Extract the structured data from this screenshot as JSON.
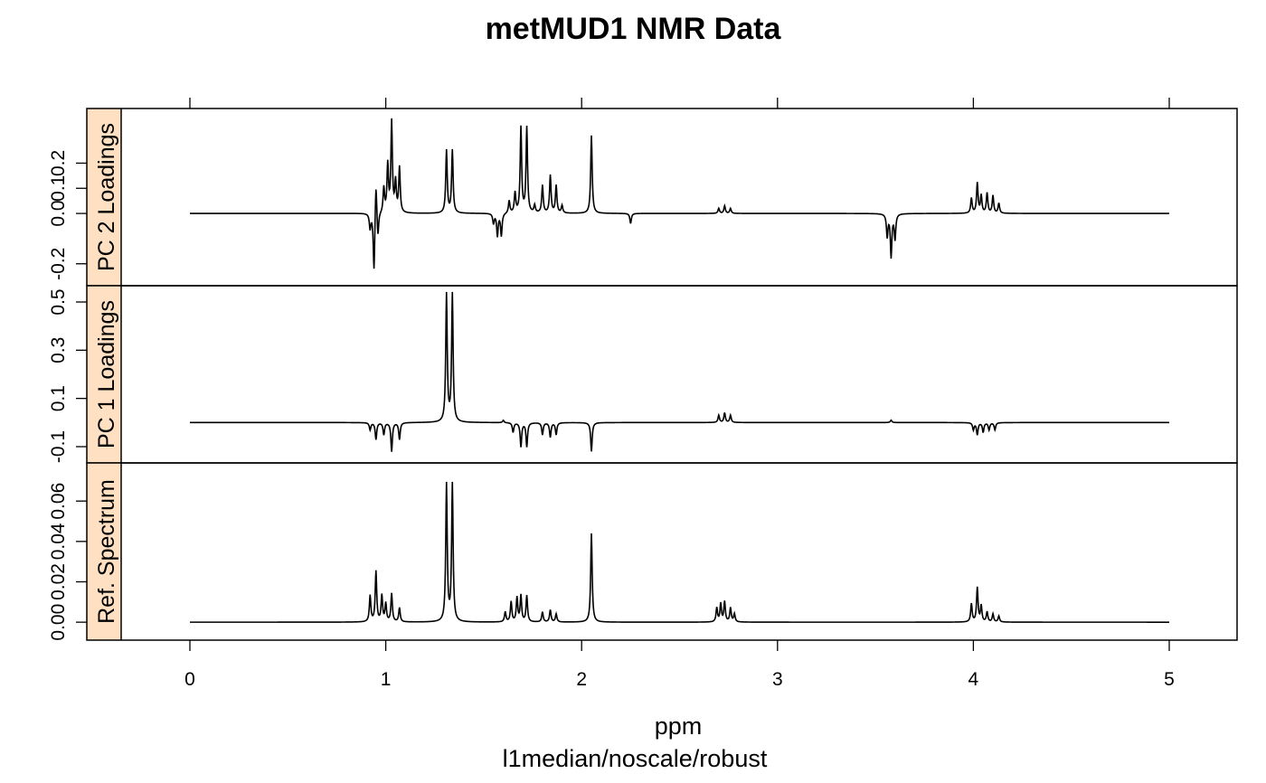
{
  "chart_data": {
    "type": "line",
    "title": "metMUD1 NMR Data",
    "xlabel": "ppm",
    "subtitle": "l1median/noscale/robust",
    "xlim": [
      -0.52,
      5.35
    ],
    "x_ticks": [
      "0",
      "1",
      "2",
      "3",
      "4",
      "5"
    ],
    "grid": false,
    "line_color": "#000000",
    "strip_color": "#FFE0C2",
    "panels": [
      {
        "name": "PC 2 Loadings",
        "ylim": [
          -0.28,
          0.41
        ],
        "y_ticks": [
          "-0.2",
          "0.0",
          "0.1",
          "0.2"
        ],
        "peaks": [
          {
            "ppm": 0.92,
            "height": -0.06
          },
          {
            "ppm": 0.94,
            "height": -0.24
          },
          {
            "ppm": 0.96,
            "height": -0.1
          },
          {
            "ppm": 0.95,
            "height": 0.15
          },
          {
            "ppm": 0.99,
            "height": 0.1
          },
          {
            "ppm": 1.01,
            "height": 0.19
          },
          {
            "ppm": 1.03,
            "height": 0.36
          },
          {
            "ppm": 1.05,
            "height": 0.12
          },
          {
            "ppm": 1.07,
            "height": 0.18
          },
          {
            "ppm": 1.31,
            "height": 0.25
          },
          {
            "ppm": 1.34,
            "height": 0.25
          },
          {
            "ppm": 1.55,
            "height": -0.04
          },
          {
            "ppm": 1.57,
            "height": -0.09
          },
          {
            "ppm": 1.59,
            "height": -0.09
          },
          {
            "ppm": 1.63,
            "height": 0.05
          },
          {
            "ppm": 1.66,
            "height": 0.08
          },
          {
            "ppm": 1.69,
            "height": 0.34
          },
          {
            "ppm": 1.72,
            "height": 0.34
          },
          {
            "ppm": 1.76,
            "height": 0.03
          },
          {
            "ppm": 1.8,
            "height": 0.11
          },
          {
            "ppm": 1.84,
            "height": 0.15
          },
          {
            "ppm": 1.87,
            "height": 0.11
          },
          {
            "ppm": 1.9,
            "height": 0.03
          },
          {
            "ppm": 2.05,
            "height": 0.31
          },
          {
            "ppm": 2.25,
            "height": -0.04
          },
          {
            "ppm": 2.7,
            "height": 0.02
          },
          {
            "ppm": 2.73,
            "height": 0.03
          },
          {
            "ppm": 2.76,
            "height": 0.02
          },
          {
            "ppm": 3.56,
            "height": -0.09
          },
          {
            "ppm": 3.58,
            "height": -0.17
          },
          {
            "ppm": 3.6,
            "height": -0.1
          },
          {
            "ppm": 3.99,
            "height": 0.06
          },
          {
            "ppm": 4.02,
            "height": 0.12
          },
          {
            "ppm": 4.04,
            "height": 0.07
          },
          {
            "ppm": 4.07,
            "height": 0.08
          },
          {
            "ppm": 4.1,
            "height": 0.07
          },
          {
            "ppm": 4.13,
            "height": 0.04
          }
        ]
      },
      {
        "name": "PC 1 Loadings",
        "ylim": [
          -0.16,
          0.56
        ],
        "y_ticks": [
          "-0.1",
          "0.1",
          "0.3",
          "0.5"
        ],
        "peaks": [
          {
            "ppm": 0.92,
            "height": -0.03
          },
          {
            "ppm": 0.95,
            "height": -0.07
          },
          {
            "ppm": 0.99,
            "height": -0.05
          },
          {
            "ppm": 1.03,
            "height": -0.12
          },
          {
            "ppm": 1.07,
            "height": -0.07
          },
          {
            "ppm": 1.31,
            "height": 0.53
          },
          {
            "ppm": 1.34,
            "height": 0.53
          },
          {
            "ppm": 1.6,
            "height": 0.01
          },
          {
            "ppm": 1.65,
            "height": -0.04
          },
          {
            "ppm": 1.69,
            "height": -0.1
          },
          {
            "ppm": 1.72,
            "height": -0.1
          },
          {
            "ppm": 1.8,
            "height": -0.05
          },
          {
            "ppm": 1.84,
            "height": -0.06
          },
          {
            "ppm": 1.87,
            "height": -0.05
          },
          {
            "ppm": 2.05,
            "height": -0.12
          },
          {
            "ppm": 2.7,
            "height": 0.03
          },
          {
            "ppm": 2.73,
            "height": 0.04
          },
          {
            "ppm": 2.76,
            "height": 0.03
          },
          {
            "ppm": 3.58,
            "height": 0.01
          },
          {
            "ppm": 4.0,
            "height": -0.03
          },
          {
            "ppm": 4.02,
            "height": -0.05
          },
          {
            "ppm": 4.05,
            "height": -0.04
          },
          {
            "ppm": 4.08,
            "height": -0.03
          },
          {
            "ppm": 4.11,
            "height": -0.03
          }
        ]
      },
      {
        "name": "Ref. Spectrum",
        "ylim": [
          -0.008,
          0.078
        ],
        "y_ticks": [
          "0.00",
          "0.02",
          "0.04",
          "0.06"
        ],
        "peaks": [
          {
            "ppm": 0.92,
            "height": 0.013
          },
          {
            "ppm": 0.95,
            "height": 0.025
          },
          {
            "ppm": 0.98,
            "height": 0.013
          },
          {
            "ppm": 1.0,
            "height": 0.009
          },
          {
            "ppm": 1.03,
            "height": 0.014
          },
          {
            "ppm": 1.07,
            "height": 0.007
          },
          {
            "ppm": 1.31,
            "height": 0.068
          },
          {
            "ppm": 1.34,
            "height": 0.068
          },
          {
            "ppm": 1.61,
            "height": 0.005
          },
          {
            "ppm": 1.64,
            "height": 0.01
          },
          {
            "ppm": 1.67,
            "height": 0.012
          },
          {
            "ppm": 1.69,
            "height": 0.013
          },
          {
            "ppm": 1.72,
            "height": 0.013
          },
          {
            "ppm": 1.8,
            "height": 0.005
          },
          {
            "ppm": 1.84,
            "height": 0.006
          },
          {
            "ppm": 1.87,
            "height": 0.004
          },
          {
            "ppm": 2.05,
            "height": 0.044
          },
          {
            "ppm": 2.69,
            "height": 0.007
          },
          {
            "ppm": 2.71,
            "height": 0.009
          },
          {
            "ppm": 2.73,
            "height": 0.01
          },
          {
            "ppm": 2.76,
            "height": 0.007
          },
          {
            "ppm": 2.78,
            "height": 0.004
          },
          {
            "ppm": 3.99,
            "height": 0.009
          },
          {
            "ppm": 4.02,
            "height": 0.017
          },
          {
            "ppm": 4.04,
            "height": 0.008
          },
          {
            "ppm": 4.07,
            "height": 0.005
          },
          {
            "ppm": 4.1,
            "height": 0.004
          },
          {
            "ppm": 4.13,
            "height": 0.003
          }
        ]
      }
    ]
  }
}
